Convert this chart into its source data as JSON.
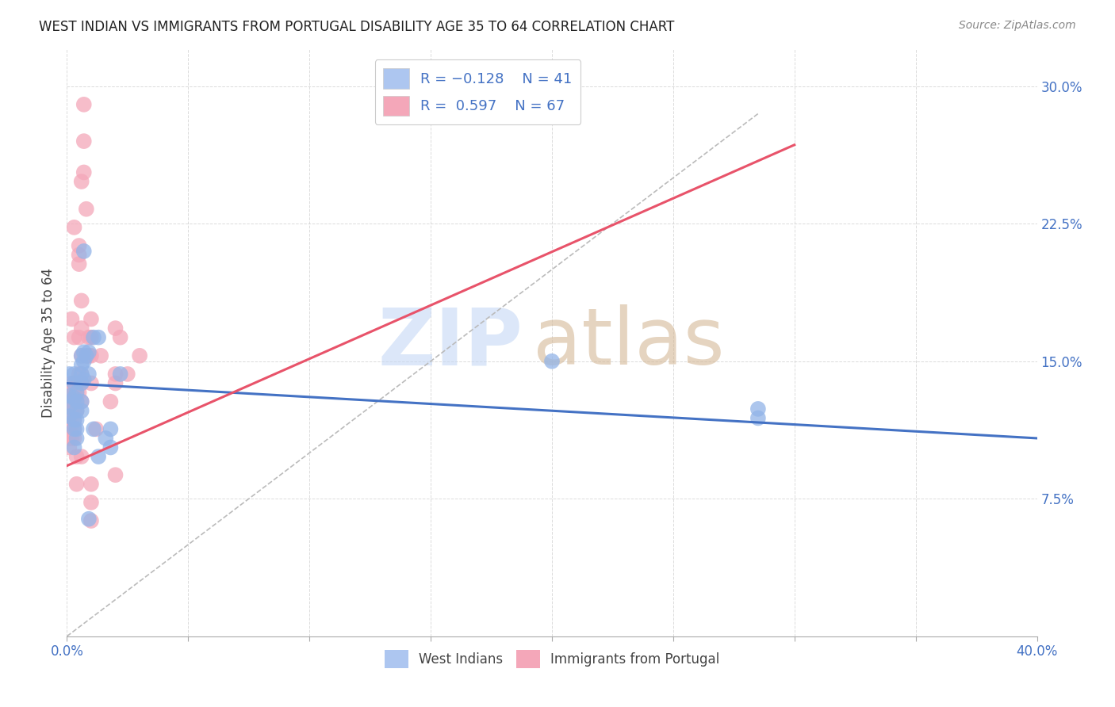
{
  "title": "WEST INDIAN VS IMMIGRANTS FROM PORTUGAL DISABILITY AGE 35 TO 64 CORRELATION CHART",
  "source": "Source: ZipAtlas.com",
  "ylabel": "Disability Age 35 to 64",
  "ytick_labels": [
    "",
    "7.5%",
    "15.0%",
    "22.5%",
    "30.0%"
  ],
  "ytick_values": [
    0.0,
    0.075,
    0.15,
    0.225,
    0.3
  ],
  "xlim": [
    0.0,
    0.4
  ],
  "ylim": [
    0.0,
    0.32
  ],
  "west_indian_color": "#92b4e8",
  "portugal_color": "#f4a7b9",
  "west_indian_line_color": "#4472c4",
  "portugal_line_color": "#e8536a",
  "legend_box_color_wi": "#adc6f0",
  "legend_box_color_pt": "#f4a7b9",
  "grid_color": "#cccccc",
  "background_color": "#ffffff",
  "west_indian_points": [
    [
      0.001,
      0.131
    ],
    [
      0.001,
      0.143
    ],
    [
      0.001,
      0.125
    ],
    [
      0.001,
      0.12
    ],
    [
      0.003,
      0.143
    ],
    [
      0.003,
      0.138
    ],
    [
      0.003,
      0.13
    ],
    [
      0.003,
      0.118
    ],
    [
      0.003,
      0.113
    ],
    [
      0.003,
      0.103
    ],
    [
      0.004,
      0.133
    ],
    [
      0.004,
      0.128
    ],
    [
      0.004,
      0.123
    ],
    [
      0.004,
      0.118
    ],
    [
      0.004,
      0.113
    ],
    [
      0.004,
      0.108
    ],
    [
      0.006,
      0.153
    ],
    [
      0.006,
      0.148
    ],
    [
      0.006,
      0.143
    ],
    [
      0.006,
      0.138
    ],
    [
      0.006,
      0.128
    ],
    [
      0.006,
      0.123
    ],
    [
      0.007,
      0.21
    ],
    [
      0.007,
      0.155
    ],
    [
      0.007,
      0.15
    ],
    [
      0.007,
      0.14
    ],
    [
      0.008,
      0.153
    ],
    [
      0.009,
      0.155
    ],
    [
      0.009,
      0.143
    ],
    [
      0.009,
      0.064
    ],
    [
      0.011,
      0.163
    ],
    [
      0.011,
      0.113
    ],
    [
      0.013,
      0.163
    ],
    [
      0.013,
      0.098
    ],
    [
      0.016,
      0.108
    ],
    [
      0.018,
      0.113
    ],
    [
      0.018,
      0.103
    ],
    [
      0.022,
      0.143
    ],
    [
      0.2,
      0.15
    ],
    [
      0.285,
      0.119
    ],
    [
      0.285,
      0.124
    ]
  ],
  "portugal_points": [
    [
      0.001,
      0.13
    ],
    [
      0.001,
      0.123
    ],
    [
      0.001,
      0.118
    ],
    [
      0.001,
      0.113
    ],
    [
      0.001,
      0.108
    ],
    [
      0.001,
      0.103
    ],
    [
      0.002,
      0.173
    ],
    [
      0.002,
      0.138
    ],
    [
      0.002,
      0.133
    ],
    [
      0.002,
      0.128
    ],
    [
      0.002,
      0.123
    ],
    [
      0.002,
      0.118
    ],
    [
      0.002,
      0.113
    ],
    [
      0.002,
      0.108
    ],
    [
      0.003,
      0.223
    ],
    [
      0.003,
      0.163
    ],
    [
      0.003,
      0.138
    ],
    [
      0.003,
      0.133
    ],
    [
      0.003,
      0.128
    ],
    [
      0.003,
      0.123
    ],
    [
      0.003,
      0.118
    ],
    [
      0.003,
      0.113
    ],
    [
      0.003,
      0.108
    ],
    [
      0.004,
      0.133
    ],
    [
      0.004,
      0.128
    ],
    [
      0.004,
      0.123
    ],
    [
      0.004,
      0.098
    ],
    [
      0.004,
      0.083
    ],
    [
      0.005,
      0.213
    ],
    [
      0.005,
      0.208
    ],
    [
      0.005,
      0.203
    ],
    [
      0.005,
      0.163
    ],
    [
      0.005,
      0.143
    ],
    [
      0.005,
      0.138
    ],
    [
      0.005,
      0.133
    ],
    [
      0.006,
      0.248
    ],
    [
      0.006,
      0.183
    ],
    [
      0.006,
      0.168
    ],
    [
      0.006,
      0.153
    ],
    [
      0.006,
      0.143
    ],
    [
      0.006,
      0.138
    ],
    [
      0.006,
      0.128
    ],
    [
      0.006,
      0.098
    ],
    [
      0.007,
      0.29
    ],
    [
      0.007,
      0.27
    ],
    [
      0.007,
      0.253
    ],
    [
      0.008,
      0.233
    ],
    [
      0.008,
      0.153
    ],
    [
      0.009,
      0.163
    ],
    [
      0.009,
      0.153
    ],
    [
      0.01,
      0.173
    ],
    [
      0.01,
      0.163
    ],
    [
      0.01,
      0.153
    ],
    [
      0.01,
      0.138
    ],
    [
      0.01,
      0.083
    ],
    [
      0.01,
      0.073
    ],
    [
      0.01,
      0.063
    ],
    [
      0.012,
      0.113
    ],
    [
      0.014,
      0.153
    ],
    [
      0.018,
      0.128
    ],
    [
      0.02,
      0.168
    ],
    [
      0.02,
      0.143
    ],
    [
      0.02,
      0.138
    ],
    [
      0.02,
      0.088
    ],
    [
      0.022,
      0.163
    ],
    [
      0.025,
      0.143
    ],
    [
      0.03,
      0.153
    ]
  ],
  "wi_line_x": [
    0.0,
    0.4
  ],
  "wi_line_y": [
    0.138,
    0.108
  ],
  "pt_line_x": [
    0.0,
    0.3
  ],
  "pt_line_y": [
    0.093,
    0.268
  ],
  "diag_line_x": [
    0.0,
    0.285
  ],
  "diag_line_y": [
    0.0,
    0.285
  ]
}
